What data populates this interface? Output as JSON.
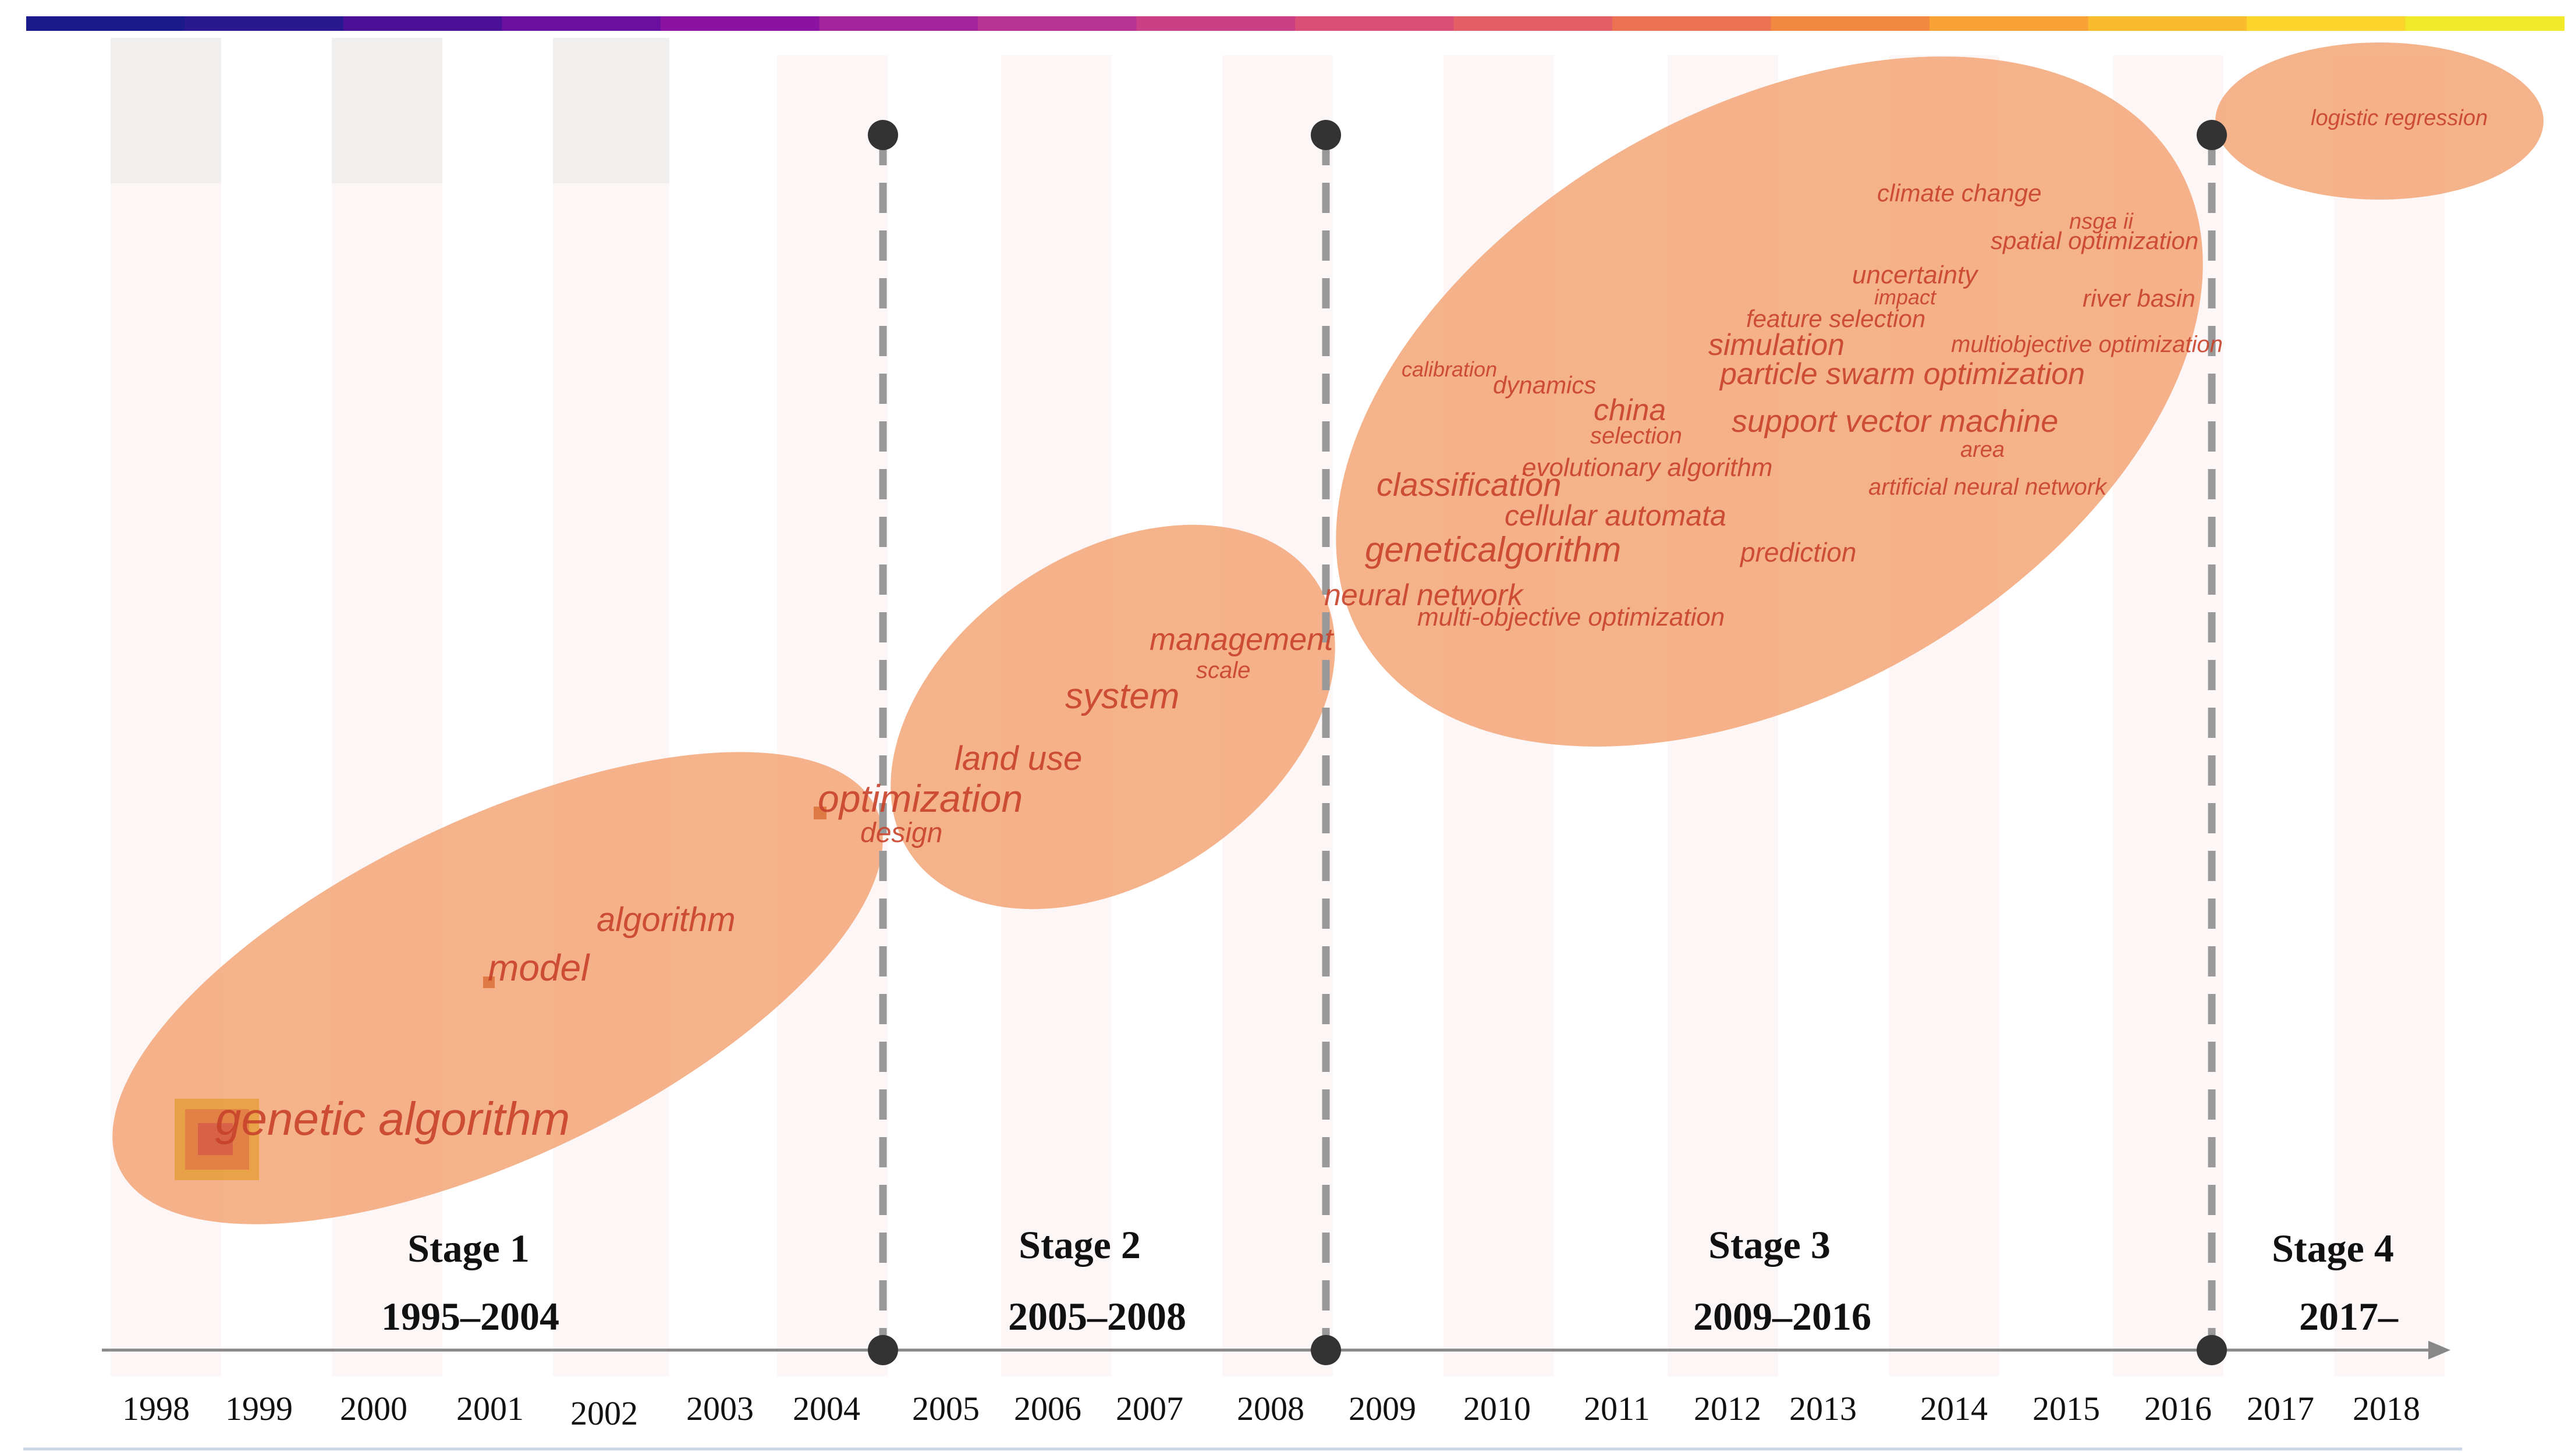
{
  "colors": {
    "colorbar": [
      "#1a1a8c",
      "#2a1890",
      "#4a1198",
      "#6a0fa0",
      "#8a13a2",
      "#a3249c",
      "#b83294",
      "#cb3f86",
      "#d94e76",
      "#e25f66",
      "#ec7254",
      "#f38841",
      "#f8a235",
      "#fbbb2e",
      "#fbd42c",
      "#f0ea2a"
    ],
    "ellipse_fill": "#f19560",
    "stage_line": "#999999",
    "dot": "#333333",
    "axis": "#888888",
    "keyword": "#c8412a"
  },
  "timeline": {
    "years": [
      "1998",
      "1999",
      "2000",
      "2001",
      "2002",
      "2003",
      "2004",
      "2005",
      "2006",
      "2007",
      "2008",
      "2009",
      "2010",
      "2011",
      "2012",
      "2013",
      "2014",
      "2015",
      "2016",
      "2017",
      "2018"
    ]
  },
  "stages": [
    {
      "title": "Stage 1",
      "range": "1995–2004"
    },
    {
      "title": "Stage 2",
      "range": "2005–2008"
    },
    {
      "title": "Stage 3",
      "range": "2009–2016"
    },
    {
      "title": "Stage 4",
      "range": "2017–"
    }
  ],
  "keywords": {
    "stage1": [
      "genetic algorithm",
      "model",
      "algorithm"
    ],
    "stage2": [
      "optimization",
      "design",
      "land use",
      "system",
      "management",
      "scale"
    ],
    "stage3": [
      "climate change",
      "nsga ii",
      "spatial optimization",
      "uncertainty",
      "impact",
      "river basin",
      "feature selection",
      "simulation",
      "multiobjective optimization",
      "calibration",
      "dynamics",
      "particle swarm optimization",
      "china",
      "selection",
      "support vector machine",
      "area",
      "evolutionary algorithm",
      "classification",
      "artificial neural network",
      "cellular automata",
      "geneticalgorithm",
      "prediction",
      "neural network",
      "multi-objective optimization"
    ],
    "stage4": [
      "logistic regression"
    ]
  }
}
